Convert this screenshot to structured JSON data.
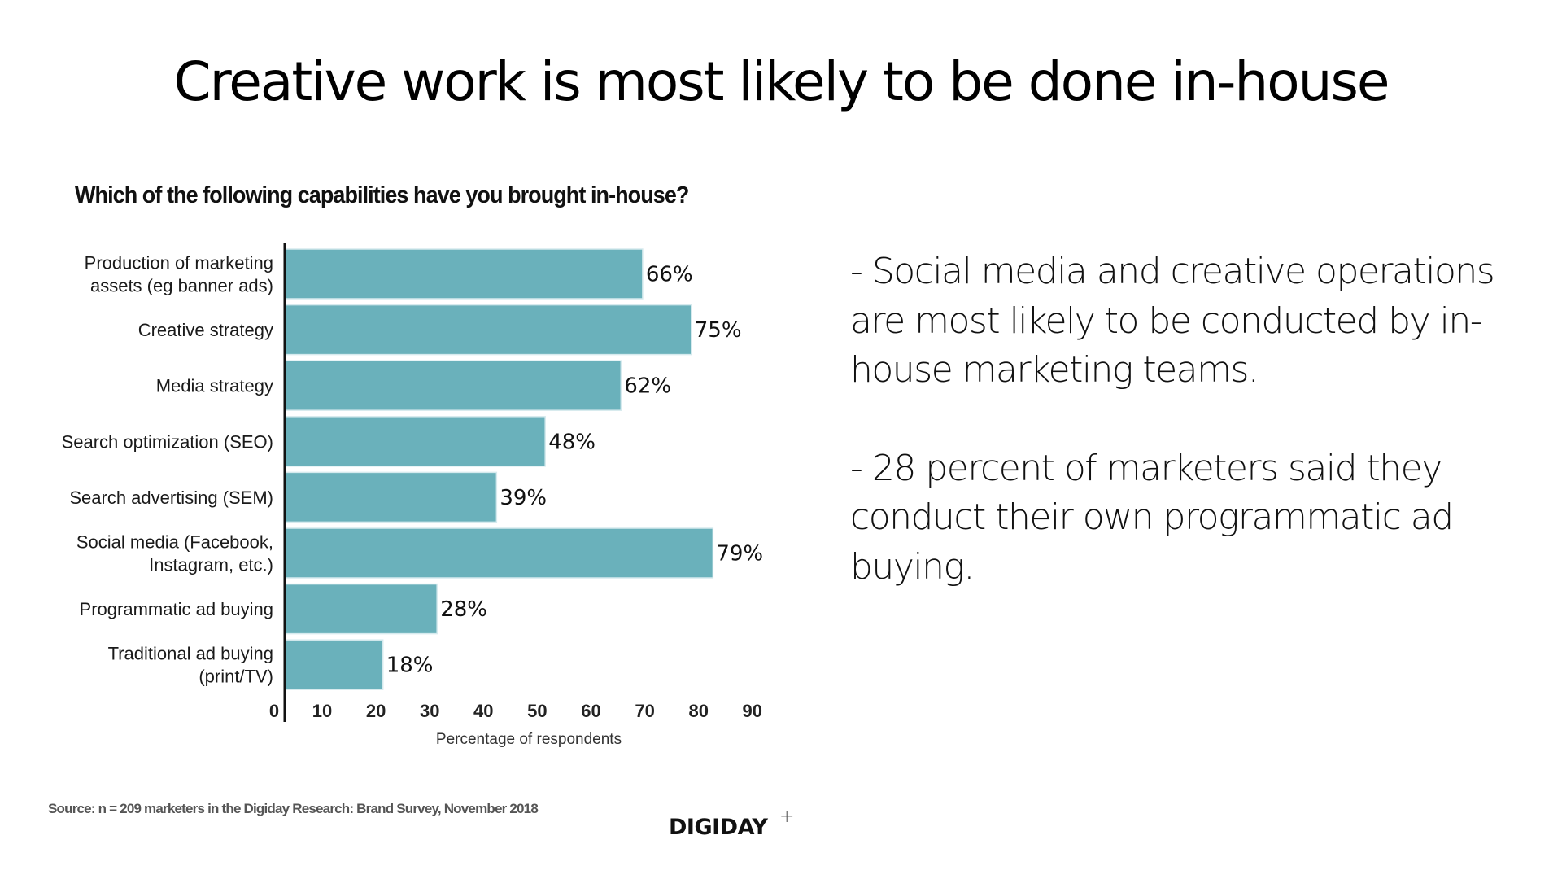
{
  "slide": {
    "title": "Creative work is most likely to be done in-house",
    "bullets": [
      "- Social media and creative operations are most likely to be conducted by in-house marketing teams.",
      "- 28 percent of marketers said they conduct their own programmatic ad buying."
    ],
    "source": "Source: n = 209 marketers in the Digiday Research: Brand Survey, November 2018",
    "logo": {
      "text": "DIGIDAY",
      "superscript": "+"
    }
  },
  "chart_data": {
    "type": "bar",
    "orientation": "horizontal",
    "title": "Which of the following capabilities have you brought in-house?",
    "xlabel": "Percentage of respondents",
    "ylabel": "",
    "categories": [
      [
        "Production of marketing",
        "assets (eg banner ads)"
      ],
      [
        "Creative strategy"
      ],
      [
        "Media strategy"
      ],
      [
        "Search optimization (SEO)"
      ],
      [
        "Search advertising (SEM)"
      ],
      [
        "Social media (Facebook,",
        "Instagram, etc.)"
      ],
      [
        "Programmatic ad buying"
      ],
      [
        "Traditional ad buying",
        "(print/TV)"
      ]
    ],
    "values": [
      66,
      75,
      62,
      48,
      39,
      79,
      28,
      18
    ],
    "value_labels": [
      "66%",
      "75%",
      "62%",
      "48%",
      "39%",
      "79%",
      "28%",
      "18%"
    ],
    "xticks": [
      0,
      10,
      20,
      30,
      40,
      50,
      60,
      70,
      80,
      90
    ],
    "xlim": [
      0,
      90
    ],
    "grid": false,
    "legend": "none",
    "bar_color": "#6ab1bb"
  }
}
